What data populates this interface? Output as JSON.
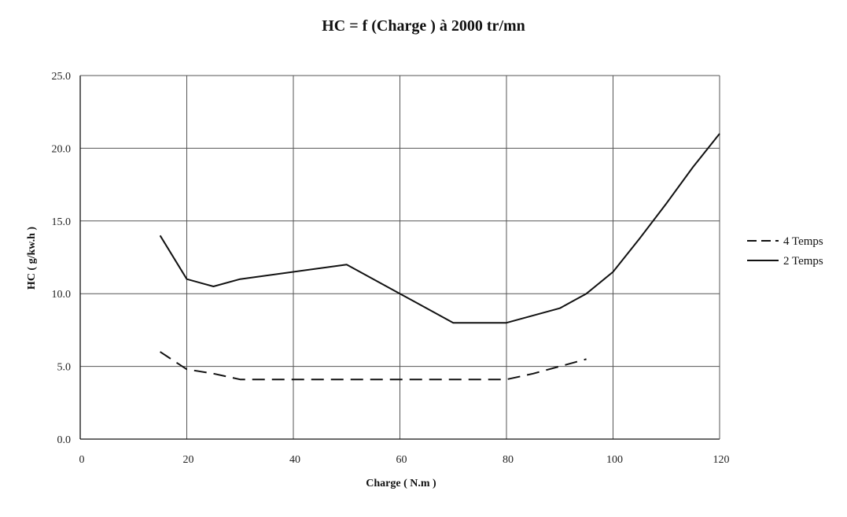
{
  "chart_data": {
    "type": "line",
    "title": "HC = f (Charge ) à 2000 tr/mn",
    "xlabel": "Charge ( N.m )",
    "ylabel": "HC ( g/kw.h )",
    "xlim": [
      0,
      120
    ],
    "ylim": [
      0,
      25
    ],
    "x_ticks": [
      0,
      20,
      40,
      60,
      80,
      100,
      120
    ],
    "y_ticks": [
      "0.0",
      "5.0",
      "10.0",
      "15.0",
      "20.0",
      "25.0"
    ],
    "grid": true,
    "legend_position": "right",
    "series": [
      {
        "name": "4 Temps",
        "style": "dashed",
        "color": "#111111",
        "points": [
          [
            15,
            6.0
          ],
          [
            20,
            4.8
          ],
          [
            25,
            4.5
          ],
          [
            30,
            4.1
          ],
          [
            40,
            4.1
          ],
          [
            50,
            4.1
          ],
          [
            60,
            4.1
          ],
          [
            70,
            4.1
          ],
          [
            80,
            4.1
          ],
          [
            85,
            4.5
          ],
          [
            90,
            5.0
          ],
          [
            95,
            5.5
          ]
        ]
      },
      {
        "name": "2 Temps",
        "style": "solid",
        "color": "#111111",
        "points": [
          [
            15,
            14.0
          ],
          [
            20,
            11.0
          ],
          [
            25,
            10.5
          ],
          [
            30,
            11.0
          ],
          [
            50,
            12.0
          ],
          [
            60,
            10.0
          ],
          [
            70,
            8.0
          ],
          [
            80,
            8.0
          ],
          [
            90,
            9.0
          ],
          [
            95,
            10.0
          ],
          [
            100,
            11.5
          ],
          [
            105,
            13.8
          ],
          [
            110,
            16.2
          ],
          [
            115,
            18.7
          ],
          [
            120,
            21.0
          ]
        ]
      }
    ]
  }
}
